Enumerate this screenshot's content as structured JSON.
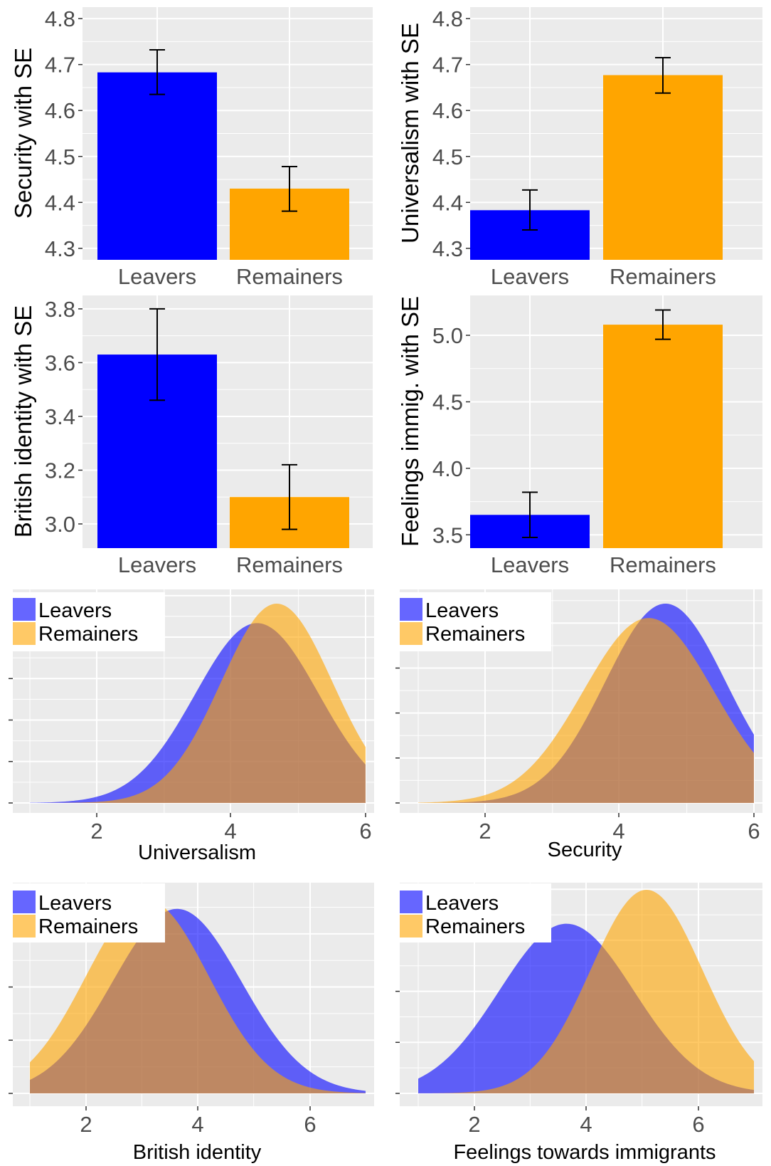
{
  "colors": {
    "leavers": "#0000FF",
    "remainers": "#FFA500",
    "panel_background": "#EBEBEB",
    "gridline": "#FFFFFF",
    "text": "#4D4D4D",
    "axis_title": "#000000"
  },
  "chart_data": [
    {
      "type": "bar",
      "categories": [
        "Leavers",
        "Remainers"
      ],
      "values": [
        4.683,
        4.43
      ],
      "errors": [
        [
          4.635,
          4.732
        ],
        [
          4.381,
          4.478
        ]
      ],
      "ylabel": "Security with SE",
      "ylim": [
        4.275,
        4.825
      ],
      "yticks": [
        4.3,
        4.4,
        4.5,
        4.6,
        4.7,
        4.8
      ],
      "ytick_labels": [
        "4.3",
        "4.4",
        "4.5",
        "4.6",
        "4.7",
        "4.8"
      ],
      "grid": true
    },
    {
      "type": "bar",
      "categories": [
        "Leavers",
        "Remainers"
      ],
      "values": [
        4.383,
        4.677
      ],
      "errors": [
        [
          4.34,
          4.427
        ],
        [
          4.638,
          4.715
        ]
      ],
      "ylabel": "Universalism with SE",
      "ylim": [
        4.275,
        4.825
      ],
      "yticks": [
        4.3,
        4.4,
        4.5,
        4.6,
        4.7,
        4.8
      ],
      "ytick_labels": [
        "4.3",
        "4.4",
        "4.5",
        "4.6",
        "4.7",
        "4.8"
      ],
      "grid": true
    },
    {
      "type": "bar",
      "categories": [
        "Leavers",
        "Remainers"
      ],
      "values": [
        3.63,
        3.1
      ],
      "errors": [
        [
          3.46,
          3.8
        ],
        [
          2.98,
          3.22
        ]
      ],
      "ylabel": "British identity with SE",
      "ylim": [
        2.91,
        3.85
      ],
      "yticks": [
        3.0,
        3.2,
        3.4,
        3.6,
        3.8
      ],
      "ytick_labels": [
        "3.0",
        "3.2",
        "3.4",
        "3.6",
        "3.8"
      ],
      "grid": true
    },
    {
      "type": "bar",
      "categories": [
        "Leavers",
        "Remainers"
      ],
      "values": [
        3.65,
        5.08
      ],
      "errors": [
        [
          3.48,
          3.82
        ],
        [
          4.97,
          5.19
        ]
      ],
      "ylabel": "Feelings immig. with SE",
      "ylim": [
        3.4,
        5.3
      ],
      "yticks": [
        3.5,
        4.0,
        4.5,
        5.0
      ],
      "ytick_labels": [
        "3.5",
        "4.0",
        "4.5",
        "5.0"
      ],
      "grid": true
    },
    {
      "type": "area",
      "xlabel": "Universalism",
      "xlim": [
        0.95,
        6.05
      ],
      "xticks": [
        2,
        4,
        6
      ],
      "xtick_labels": [
        "2",
        "4",
        "6"
      ],
      "domain": [
        1,
        6
      ],
      "legend": "top-left",
      "series": [
        {
          "name": "Leavers",
          "mean": 4.383,
          "sd": 0.92
        },
        {
          "name": "Remainers",
          "mean": 4.677,
          "sd": 0.83
        }
      ]
    },
    {
      "type": "area",
      "xlabel": "Security",
      "xlim": [
        0.95,
        6.05
      ],
      "xticks": [
        2,
        4,
        6
      ],
      "xtick_labels": [
        "2",
        "4",
        "6"
      ],
      "domain": [
        1,
        6
      ],
      "legend": "top-left",
      "series": [
        {
          "name": "Leavers",
          "mean": 4.683,
          "sd": 0.9
        },
        {
          "name": "Remainers",
          "mean": 4.43,
          "sd": 0.97
        }
      ]
    },
    {
      "type": "area",
      "xlabel": "British identity",
      "xlim": [
        0.94,
        7.06
      ],
      "xticks": [
        2,
        4,
        6
      ],
      "xtick_labels": [
        "2",
        "4",
        "6"
      ],
      "domain": [
        1,
        7
      ],
      "legend": "top-left",
      "series": [
        {
          "name": "Leavers",
          "mean": 3.63,
          "sd": 1.15
        },
        {
          "name": "Remainers",
          "mean": 3.1,
          "sd": 1.1
        }
      ]
    },
    {
      "type": "area",
      "xlabel": "Feelings towards immigrants",
      "xlim": [
        0.94,
        7.06
      ],
      "xticks": [
        2,
        4,
        6
      ],
      "xtick_labels": [
        "2",
        "4",
        "6"
      ],
      "domain": [
        1,
        7
      ],
      "legend": "top-left",
      "series": [
        {
          "name": "Leavers",
          "mean": 3.65,
          "sd": 1.2
        },
        {
          "name": "Remainers",
          "mean": 5.08,
          "sd": 1.0
        }
      ]
    }
  ]
}
